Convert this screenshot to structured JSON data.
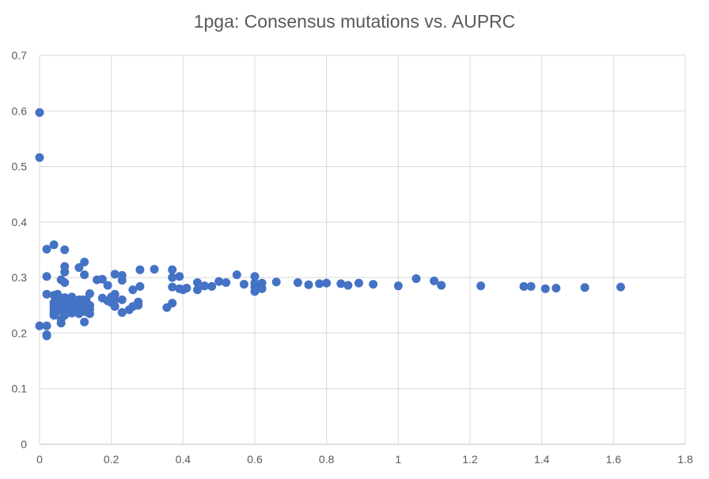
{
  "chart_data": {
    "type": "scatter",
    "title": "1pga: Consensus mutations vs. AUPRC",
    "xlabel": "",
    "ylabel": "",
    "xlim": [
      0,
      1.8
    ],
    "ylim": [
      0,
      0.7
    ],
    "x_ticks": [
      "0",
      "0.2",
      "0.4",
      "0.6",
      "0.8",
      "1",
      "1.2",
      "1.4",
      "1.6",
      "1.8"
    ],
    "y_ticks": [
      "0",
      "0.1",
      "0.2",
      "0.3",
      "0.4",
      "0.5",
      "0.6",
      "0.7"
    ],
    "grid": true,
    "legend": "none",
    "marker_color": "#4472C4",
    "points": [
      [
        0.0,
        0.597
      ],
      [
        0.0,
        0.516
      ],
      [
        0.0,
        0.213
      ],
      [
        0.02,
        0.351
      ],
      [
        0.02,
        0.302
      ],
      [
        0.02,
        0.27
      ],
      [
        0.02,
        0.213
      ],
      [
        0.02,
        0.197
      ],
      [
        0.02,
        0.195
      ],
      [
        0.04,
        0.359
      ],
      [
        0.04,
        0.268
      ],
      [
        0.04,
        0.255
      ],
      [
        0.04,
        0.248
      ],
      [
        0.04,
        0.242
      ],
      [
        0.04,
        0.236
      ],
      [
        0.04,
        0.232
      ],
      [
        0.05,
        0.27
      ],
      [
        0.05,
        0.25
      ],
      [
        0.05,
        0.24
      ],
      [
        0.06,
        0.296
      ],
      [
        0.06,
        0.26
      ],
      [
        0.06,
        0.245
      ],
      [
        0.06,
        0.225
      ],
      [
        0.06,
        0.218
      ],
      [
        0.07,
        0.35
      ],
      [
        0.07,
        0.32
      ],
      [
        0.07,
        0.31
      ],
      [
        0.07,
        0.291
      ],
      [
        0.07,
        0.264
      ],
      [
        0.07,
        0.25
      ],
      [
        0.07,
        0.243
      ],
      [
        0.07,
        0.232
      ],
      [
        0.08,
        0.26
      ],
      [
        0.08,
        0.24
      ],
      [
        0.09,
        0.265
      ],
      [
        0.09,
        0.255
      ],
      [
        0.09,
        0.245
      ],
      [
        0.09,
        0.236
      ],
      [
        0.1,
        0.258
      ],
      [
        0.1,
        0.246
      ],
      [
        0.1,
        0.24
      ],
      [
        0.11,
        0.318
      ],
      [
        0.11,
        0.26
      ],
      [
        0.11,
        0.245
      ],
      [
        0.11,
        0.235
      ],
      [
        0.12,
        0.26
      ],
      [
        0.12,
        0.25
      ],
      [
        0.12,
        0.24
      ],
      [
        0.125,
        0.328
      ],
      [
        0.125,
        0.305
      ],
      [
        0.125,
        0.255
      ],
      [
        0.125,
        0.22
      ],
      [
        0.13,
        0.26
      ],
      [
        0.13,
        0.248
      ],
      [
        0.13,
        0.238
      ],
      [
        0.14,
        0.271
      ],
      [
        0.14,
        0.25
      ],
      [
        0.14,
        0.243
      ],
      [
        0.14,
        0.235
      ],
      [
        0.16,
        0.296
      ],
      [
        0.175,
        0.297
      ],
      [
        0.175,
        0.263
      ],
      [
        0.19,
        0.286
      ],
      [
        0.19,
        0.258
      ],
      [
        0.2,
        0.265
      ],
      [
        0.2,
        0.255
      ],
      [
        0.21,
        0.306
      ],
      [
        0.21,
        0.27
      ],
      [
        0.21,
        0.26
      ],
      [
        0.21,
        0.248
      ],
      [
        0.23,
        0.304
      ],
      [
        0.23,
        0.295
      ],
      [
        0.23,
        0.26
      ],
      [
        0.23,
        0.237
      ],
      [
        0.25,
        0.242
      ],
      [
        0.26,
        0.278
      ],
      [
        0.26,
        0.248
      ],
      [
        0.275,
        0.256
      ],
      [
        0.275,
        0.25
      ],
      [
        0.28,
        0.314
      ],
      [
        0.28,
        0.284
      ],
      [
        0.32,
        0.315
      ],
      [
        0.355,
        0.246
      ],
      [
        0.37,
        0.314
      ],
      [
        0.37,
        0.3
      ],
      [
        0.37,
        0.283
      ],
      [
        0.37,
        0.254
      ],
      [
        0.39,
        0.302
      ],
      [
        0.39,
        0.28
      ],
      [
        0.4,
        0.278
      ],
      [
        0.41,
        0.281
      ],
      [
        0.44,
        0.291
      ],
      [
        0.44,
        0.278
      ],
      [
        0.46,
        0.285
      ],
      [
        0.48,
        0.284
      ],
      [
        0.5,
        0.293
      ],
      [
        0.52,
        0.291
      ],
      [
        0.55,
        0.305
      ],
      [
        0.57,
        0.288
      ],
      [
        0.6,
        0.302
      ],
      [
        0.6,
        0.29
      ],
      [
        0.6,
        0.283
      ],
      [
        0.6,
        0.275
      ],
      [
        0.62,
        0.29
      ],
      [
        0.62,
        0.28
      ],
      [
        0.66,
        0.292
      ],
      [
        0.72,
        0.291
      ],
      [
        0.75,
        0.287
      ],
      [
        0.78,
        0.289
      ],
      [
        0.8,
        0.29
      ],
      [
        0.84,
        0.289
      ],
      [
        0.86,
        0.286
      ],
      [
        0.89,
        0.29
      ],
      [
        0.93,
        0.288
      ],
      [
        1.0,
        0.285
      ],
      [
        1.05,
        0.298
      ],
      [
        1.1,
        0.294
      ],
      [
        1.12,
        0.286
      ],
      [
        1.23,
        0.285
      ],
      [
        1.35,
        0.284
      ],
      [
        1.37,
        0.284
      ],
      [
        1.41,
        0.28
      ],
      [
        1.44,
        0.281
      ],
      [
        1.52,
        0.282
      ],
      [
        1.62,
        0.283
      ]
    ]
  }
}
